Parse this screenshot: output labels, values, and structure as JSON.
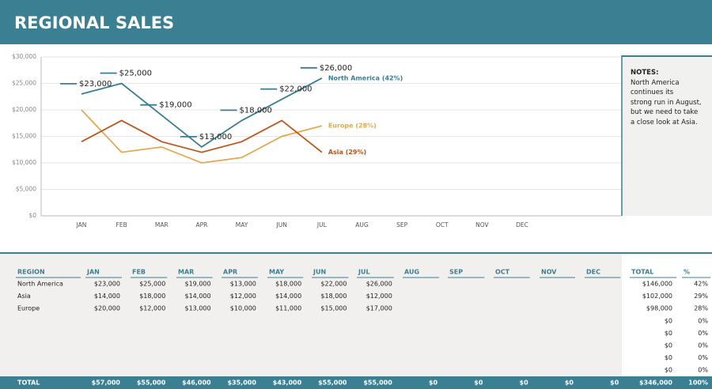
{
  "header": {
    "title": "REGIONAL SALES"
  },
  "chart_data": {
    "type": "line",
    "categories": [
      "JAN",
      "FEB",
      "MAR",
      "APR",
      "MAY",
      "JUN",
      "JUL",
      "AUG",
      "SEP",
      "OCT",
      "NOV",
      "DEC"
    ],
    "series": [
      {
        "name": "North America (42%)",
        "color": "#3a7d93",
        "values": [
          23000,
          25000,
          19000,
          13000,
          18000,
          22000,
          26000,
          null,
          null,
          null,
          null,
          null
        ],
        "value_labels": [
          "$23,000",
          "$25,000",
          "$19,000",
          "$13,000",
          "$18,000",
          "$22,000",
          "$26,000",
          null,
          null,
          null,
          null,
          null
        ]
      },
      {
        "name": "Europe (28%)",
        "color": "#e2aa50",
        "values": [
          20000,
          12000,
          13000,
          10000,
          11000,
          15000,
          17000,
          null,
          null,
          null,
          null,
          null
        ]
      },
      {
        "name": "Asia (29%)",
        "color": "#c0561a",
        "values": [
          14000,
          18000,
          14000,
          12000,
          14000,
          18000,
          12000,
          null,
          null,
          null,
          null,
          null
        ]
      }
    ],
    "ylim": [
      0,
      30000
    ],
    "yticks": [
      {
        "value": 0,
        "label": "$0"
      },
      {
        "value": 5000,
        "label": "$5,000"
      },
      {
        "value": 10000,
        "label": "$10,000"
      },
      {
        "value": 15000,
        "label": "$15,000"
      },
      {
        "value": 20000,
        "label": "$20,000"
      },
      {
        "value": 25000,
        "label": "$25,000"
      },
      {
        "value": 30000,
        "label": "$30,000"
      }
    ],
    "grid": true
  },
  "notes": {
    "title": "NOTES:",
    "lines": [
      "North America continues its",
      "strong run in August,",
      "but we need to take",
      "a close look at Asia."
    ]
  },
  "table": {
    "header": [
      "REGION",
      "JAN",
      "FEB",
      "MAR",
      "APR",
      "MAY",
      "JUN",
      "JUL",
      "AUG",
      "SEP",
      "OCT",
      "NOV",
      "DEC",
      "TOTAL",
      "%"
    ],
    "rows": [
      {
        "region": "North America",
        "months": [
          "$23,000",
          "$25,000",
          "$19,000",
          "$13,000",
          "$18,000",
          "$22,000",
          "$26,000"
        ],
        "total": "$146,000",
        "pct": "42%"
      },
      {
        "region": "Asia",
        "months": [
          "$14,000",
          "$18,000",
          "$14,000",
          "$12,000",
          "$14,000",
          "$18,000",
          "$12,000"
        ],
        "total": "$102,000",
        "pct": "29%"
      },
      {
        "region": "Europe",
        "months": [
          "$20,000",
          "$12,000",
          "$13,000",
          "$10,000",
          "$11,000",
          "$15,000",
          "$17,000"
        ],
        "total": "$98,000",
        "pct": "28%"
      },
      {
        "total": "$0",
        "pct": "0%"
      },
      {
        "total": "$0",
        "pct": "0%"
      },
      {
        "total": "$0",
        "pct": "0%"
      },
      {
        "total": "$0",
        "pct": "0%"
      },
      {
        "total": "$0",
        "pct": "0%"
      }
    ],
    "total": {
      "label": "TOTAL",
      "months": [
        "$57,000",
        "$55,000",
        "$46,000",
        "$35,000",
        "$43,000",
        "$55,000",
        "$55,000",
        "$0",
        "$0",
        "$0",
        "$0",
        "$0"
      ],
      "total": "$346,000",
      "pct": "100%"
    }
  }
}
